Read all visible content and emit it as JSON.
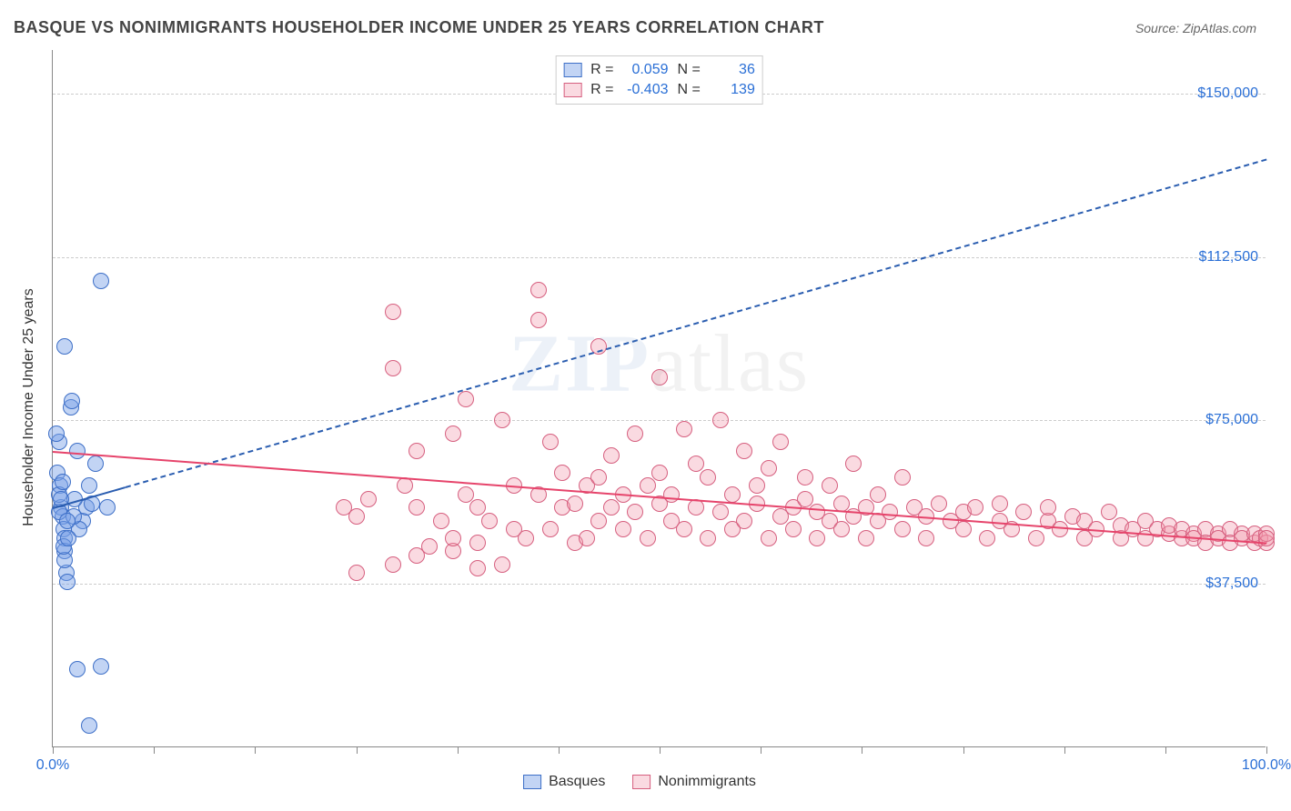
{
  "title": "BASQUE VS NONIMMIGRANTS HOUSEHOLDER INCOME UNDER 25 YEARS CORRELATION CHART",
  "source_label": "Source:",
  "source_name": "ZipAtlas.com",
  "watermark": {
    "bold": "ZIP",
    "light": "atlas"
  },
  "y_axis_label": "Householder Income Under 25 years",
  "chart": {
    "type": "scatter",
    "xlim": [
      0,
      100
    ],
    "ylim": [
      0,
      160000
    ],
    "background_color": "#ffffff",
    "grid_color": "#cccccc",
    "grid_dash": "4,3",
    "y_gridlines": [
      37500,
      75000,
      112500,
      150000
    ],
    "y_tick_labels": [
      "$37,500",
      "$75,000",
      "$112,500",
      "$150,000"
    ],
    "x_ticks": [
      0,
      8.33,
      16.67,
      25,
      33.33,
      41.67,
      50,
      58.33,
      66.67,
      75,
      83.33,
      91.67,
      100
    ],
    "x_tick_labels": {
      "0": "0.0%",
      "100": "100.0%"
    },
    "series": [
      {
        "name": "Basques",
        "marker_color_fill": "rgba(120,160,230,0.45)",
        "marker_color_stroke": "#3d6fc7",
        "marker_stroke_width": 1.5,
        "marker_radius": 9,
        "r_value": "0.059",
        "n_value": "36",
        "trend": {
          "type": "solid_then_dashed",
          "color": "#2a5db0",
          "width": 2,
          "x1": 0,
          "y1": 55000,
          "x_solid_end": 6,
          "x2": 100,
          "y2": 135000
        },
        "points": [
          [
            0.5,
            70000
          ],
          [
            0.7,
            55000
          ],
          [
            0.8,
            53000
          ],
          [
            0.9,
            50000
          ],
          [
            1.0,
            48000
          ],
          [
            1.0,
            45000
          ],
          [
            1.1,
            40000
          ],
          [
            1.2,
            38000
          ],
          [
            0.4,
            63000
          ],
          [
            0.6,
            60000
          ],
          [
            1.5,
            78000
          ],
          [
            1.6,
            79500
          ],
          [
            2.0,
            68000
          ],
          [
            2.5,
            52000
          ],
          [
            2.8,
            55000
          ],
          [
            3.0,
            60000
          ],
          [
            3.2,
            56000
          ],
          [
            3.5,
            65000
          ],
          [
            1.0,
            43000
          ],
          [
            0.9,
            46000
          ],
          [
            4.0,
            107000
          ],
          [
            1.0,
            92000
          ],
          [
            1.8,
            57000
          ],
          [
            2.2,
            50000
          ],
          [
            0.3,
            72000
          ],
          [
            0.5,
            58000
          ],
          [
            0.8,
            61000
          ],
          [
            4.5,
            55000
          ],
          [
            1.3,
            48000
          ],
          [
            1.7,
            53000
          ],
          [
            2.0,
            18000
          ],
          [
            4.0,
            18500
          ],
          [
            3.0,
            5000
          ],
          [
            0.5,
            54000
          ],
          [
            0.7,
            57000
          ],
          [
            1.2,
            52000
          ]
        ]
      },
      {
        "name": "Nonimmigrants",
        "marker_color_fill": "rgba(240,150,170,0.35)",
        "marker_color_stroke": "#d65f7f",
        "marker_stroke_width": 1.5,
        "marker_radius": 9,
        "r_value": "-0.403",
        "n_value": "139",
        "trend": {
          "type": "solid",
          "color": "#e6446b",
          "width": 2.5,
          "x1": 0,
          "y1": 68000,
          "x2": 100,
          "y2": 47000
        },
        "points": [
          [
            24,
            55000
          ],
          [
            25,
            53000
          ],
          [
            25,
            40000
          ],
          [
            26,
            57000
          ],
          [
            28,
            100000
          ],
          [
            28,
            87000
          ],
          [
            29,
            60000
          ],
          [
            30,
            55000
          ],
          [
            30,
            68000
          ],
          [
            31,
            46000
          ],
          [
            32,
            52000
          ],
          [
            33,
            72000
          ],
          [
            33,
            45000
          ],
          [
            34,
            58000
          ],
          [
            34,
            80000
          ],
          [
            35,
            47000
          ],
          [
            35,
            41000
          ],
          [
            35,
            55000
          ],
          [
            36,
            52000
          ],
          [
            37,
            75000
          ],
          [
            37,
            42000
          ],
          [
            38,
            60000
          ],
          [
            38,
            50000
          ],
          [
            39,
            48000
          ],
          [
            40,
            105000
          ],
          [
            40,
            98000
          ],
          [
            40,
            58000
          ],
          [
            41,
            50000
          ],
          [
            41,
            70000
          ],
          [
            42,
            55000
          ],
          [
            42,
            63000
          ],
          [
            43,
            47000
          ],
          [
            43,
            56000
          ],
          [
            44,
            60000
          ],
          [
            44,
            48000
          ],
          [
            45,
            92000
          ],
          [
            45,
            62000
          ],
          [
            45,
            52000
          ],
          [
            46,
            55000
          ],
          [
            46,
            67000
          ],
          [
            47,
            58000
          ],
          [
            47,
            50000
          ],
          [
            48,
            72000
          ],
          [
            48,
            54000
          ],
          [
            49,
            60000
          ],
          [
            49,
            48000
          ],
          [
            50,
            85000
          ],
          [
            50,
            56000
          ],
          [
            50,
            63000
          ],
          [
            51,
            52000
          ],
          [
            51,
            58000
          ],
          [
            52,
            73000
          ],
          [
            52,
            50000
          ],
          [
            53,
            55000
          ],
          [
            53,
            65000
          ],
          [
            54,
            48000
          ],
          [
            54,
            62000
          ],
          [
            55,
            75000
          ],
          [
            55,
            54000
          ],
          [
            56,
            58000
          ],
          [
            56,
            50000
          ],
          [
            57,
            68000
          ],
          [
            57,
            52000
          ],
          [
            58,
            60000
          ],
          [
            58,
            56000
          ],
          [
            59,
            48000
          ],
          [
            59,
            64000
          ],
          [
            60,
            53000
          ],
          [
            60,
            70000
          ],
          [
            61,
            55000
          ],
          [
            61,
            50000
          ],
          [
            62,
            62000
          ],
          [
            62,
            57000
          ],
          [
            63,
            48000
          ],
          [
            63,
            54000
          ],
          [
            64,
            60000
          ],
          [
            64,
            52000
          ],
          [
            65,
            56000
          ],
          [
            65,
            50000
          ],
          [
            66,
            65000
          ],
          [
            66,
            53000
          ],
          [
            67,
            55000
          ],
          [
            67,
            48000
          ],
          [
            68,
            58000
          ],
          [
            68,
            52000
          ],
          [
            69,
            54000
          ],
          [
            70,
            62000
          ],
          [
            70,
            50000
          ],
          [
            71,
            55000
          ],
          [
            72,
            53000
          ],
          [
            72,
            48000
          ],
          [
            73,
            56000
          ],
          [
            74,
            52000
          ],
          [
            75,
            50000
          ],
          [
            75,
            54000
          ],
          [
            76,
            55000
          ],
          [
            77,
            48000
          ],
          [
            78,
            52000
          ],
          [
            78,
            56000
          ],
          [
            79,
            50000
          ],
          [
            80,
            54000
          ],
          [
            81,
            48000
          ],
          [
            82,
            52000
          ],
          [
            82,
            55000
          ],
          [
            83,
            50000
          ],
          [
            84,
            53000
          ],
          [
            85,
            48000
          ],
          [
            85,
            52000
          ],
          [
            86,
            50000
          ],
          [
            87,
            54000
          ],
          [
            88,
            48000
          ],
          [
            88,
            51000
          ],
          [
            89,
            50000
          ],
          [
            90,
            52000
          ],
          [
            90,
            48000
          ],
          [
            91,
            50000
          ],
          [
            92,
            49000
          ],
          [
            92,
            51000
          ],
          [
            93,
            48000
          ],
          [
            93,
            50000
          ],
          [
            94,
            49000
          ],
          [
            94,
            48000
          ],
          [
            95,
            50000
          ],
          [
            95,
            47000
          ],
          [
            96,
            49000
          ],
          [
            96,
            48000
          ],
          [
            97,
            50000
          ],
          [
            97,
            47000
          ],
          [
            98,
            49000
          ],
          [
            98,
            48000
          ],
          [
            99,
            47000
          ],
          [
            99,
            49000
          ],
          [
            99.5,
            48000
          ],
          [
            100,
            47000
          ],
          [
            100,
            49000
          ],
          [
            100,
            48000
          ],
          [
            28,
            42000
          ],
          [
            30,
            44000
          ],
          [
            33,
            48000
          ]
        ]
      }
    ],
    "stat_legend_labels": {
      "r": "R =",
      "n": "N ="
    },
    "bottom_legend_labels": [
      "Basques",
      "Nonimmigrants"
    ]
  }
}
